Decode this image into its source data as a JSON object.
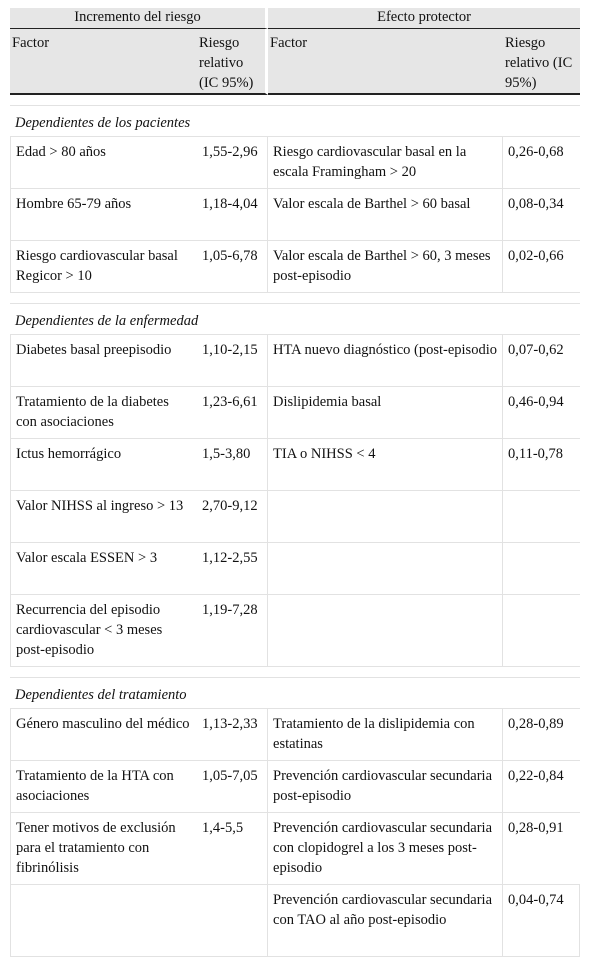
{
  "headers": {
    "group_left": "Incremento del riesgo",
    "group_right": "Efecto protector",
    "factor": "Factor",
    "rr": "Riesgo relativo (IC 95%)"
  },
  "sections": [
    {
      "title": "Dependientes de los pacientes",
      "rows": [
        [
          "Edad > 80 años",
          "1,55-2,96",
          "Riesgo cardiovascular basal en la escala Framingham > 20",
          "0,26-0,68"
        ],
        [
          "Hombre 65-79 años",
          "1,18-4,04",
          "Valor escala de Barthel > 60 basal",
          "0,08-0,34"
        ],
        [
          "Riesgo cardiovascular basal Regicor > 10",
          "1,05-6,78",
          "Valor escala de Barthel > 60, 3 meses post-episodio",
          "0,02-0,66"
        ]
      ]
    },
    {
      "title": "Dependientes de la enfermedad",
      "rows": [
        [
          "Diabetes basal preepisodio",
          "1,10-2,15",
          "HTA nuevo diagnóstico (post-episodio",
          "0,07-0,62"
        ],
        [
          "Tratamiento de la diabetes con asociaciones",
          "1,23-6,61",
          "Dislipidemia basal",
          "0,46-0,94"
        ],
        [
          "Ictus hemorrágico",
          "1,5-3,80",
          "TIA o NIHSS < 4",
          "0,11-0,78"
        ],
        [
          "Valor NIHSS al ingreso > 13",
          "2,70-9,12",
          "",
          ""
        ],
        [
          "Valor escala ESSEN > 3",
          "1,12-2,55",
          "",
          ""
        ],
        [
          "Recurrencia del episodio cardiovascular < 3 meses post-episodio",
          "1,19-7,28",
          "",
          ""
        ]
      ]
    },
    {
      "title": "Dependientes del tratamiento",
      "rows": [
        [
          "Género masculino del médico",
          "1,13-2,33",
          "Tratamiento de la dislipidemia con estatinas",
          "0,28-0,89"
        ],
        [
          "Tratamiento de la HTA con asociaciones",
          "1,05-7,05",
          "Prevención cardiovascular secundaria post-episodio",
          "0,22-0,84"
        ],
        [
          "Tener motivos de exclusión para el tratamiento con fibrinólisis",
          "1,4-5,5",
          "Prevención cardiovascular secundaria con clopidogrel a los 3 meses post-episodio",
          "0,28-0,91"
        ],
        [
          "",
          "",
          "Prevención cardiovascular secundaria con TAO al año post-episodio",
          "0,04-0,74"
        ]
      ]
    }
  ]
}
